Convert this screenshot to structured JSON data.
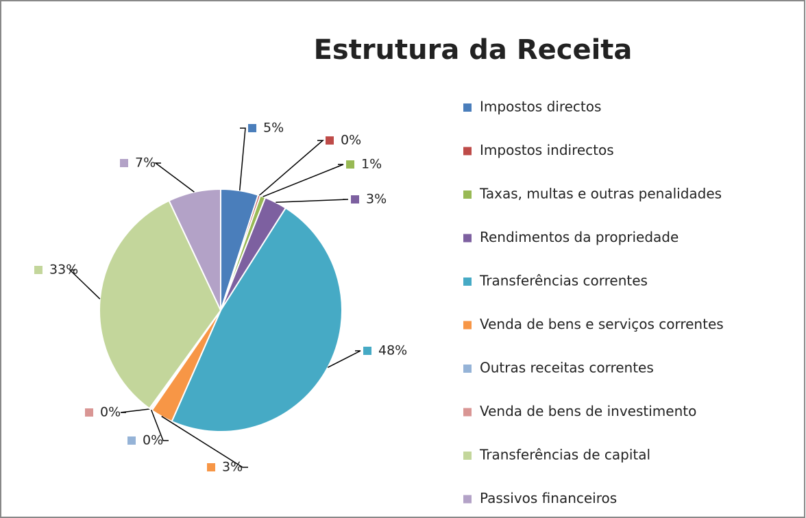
{
  "chart_data": {
    "type": "pie",
    "title": "Estrutura da Receita",
    "categories": [
      "Impostos directos",
      "Impostos indirectos",
      "Taxas, multas e outras penalidades",
      "Rendimentos da propriedade",
      "Transferências correntes",
      "Venda de bens e serviços correntes",
      "Outras receitas correntes",
      "Venda de bens de investimento",
      "Transferências de capital",
      "Passivos financeiros"
    ],
    "values": [
      5,
      0.3,
      0.7,
      3,
      47.6,
      3,
      0.2,
      0.2,
      33,
      7
    ],
    "value_labels": [
      "5%",
      "0%",
      "1%",
      "3%",
      "48%",
      "3%",
      "0%",
      "0%",
      "33%",
      "7%"
    ],
    "colors": [
      "#4a7ebb",
      "#be4b48",
      "#98b954",
      "#7d60a0",
      "#46aac5",
      "#f79646",
      "#95b3d7",
      "#d99694",
      "#c3d69b",
      "#b3a2c7"
    ],
    "legend": "right"
  }
}
